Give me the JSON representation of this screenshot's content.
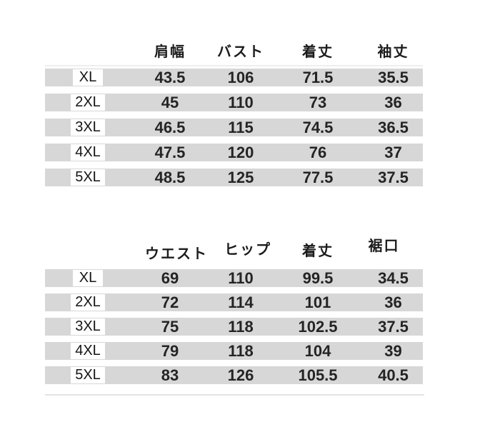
{
  "colors": {
    "background": "#ffffff",
    "row_band": "#d7d7d7",
    "size_label_box": "#ffffff",
    "text": "#242424"
  },
  "chart_data": [
    {
      "type": "table",
      "section": "tops-size-table",
      "columns": [
        "肩幅",
        "バスト",
        "着丈",
        "袖丈"
      ],
      "rows": [
        {
          "size": "XL",
          "values": [
            "43.5",
            "106",
            "71.5",
            "35.5"
          ]
        },
        {
          "size": "2XL",
          "values": [
            "45",
            "110",
            "73",
            "36"
          ]
        },
        {
          "size": "3XL",
          "values": [
            "46.5",
            "115",
            "74.5",
            "36.5"
          ]
        },
        {
          "size": "4XL",
          "values": [
            "47.5",
            "120",
            "76",
            "37"
          ]
        },
        {
          "size": "5XL",
          "values": [
            "48.5",
            "125",
            "77.5",
            "37.5"
          ]
        }
      ]
    },
    {
      "type": "table",
      "section": "bottoms-size-table",
      "columns": [
        "ウエスト",
        "ヒップ",
        "着丈",
        "裾口"
      ],
      "rows": [
        {
          "size": "XL",
          "values": [
            "69",
            "110",
            "99.5",
            "34.5"
          ]
        },
        {
          "size": "2XL",
          "values": [
            "72",
            "114",
            "101",
            "36"
          ]
        },
        {
          "size": "3XL",
          "values": [
            "75",
            "118",
            "102.5",
            "37.5"
          ]
        },
        {
          "size": "4XL",
          "values": [
            "79",
            "118",
            "104",
            "39"
          ]
        },
        {
          "size": "5XL",
          "values": [
            "83",
            "126",
            "105.5",
            "40.5"
          ]
        }
      ]
    }
  ]
}
